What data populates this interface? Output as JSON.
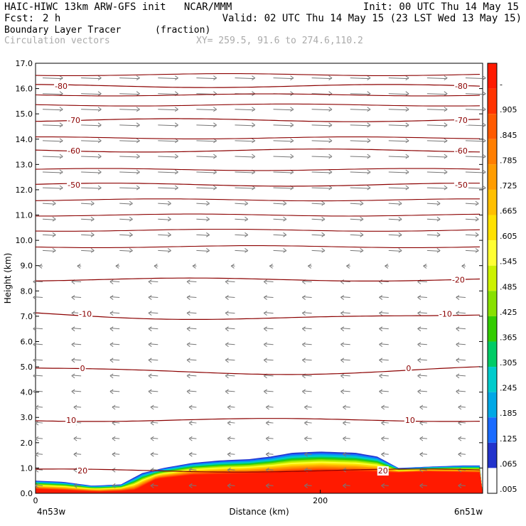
{
  "header": {
    "line1_left": "HAIC-HIWC 13km ARW-GFS init   NCAR/MMM",
    "line1_right": "Init: 00 UTC Thu 14 May 15",
    "line2_left_label": "Fcst:",
    "line2_left_value": "2 h",
    "line2_right": "Valid: 02 UTC Thu 14 May 15 (23 LST Wed 13 May 15)",
    "field_name": "Boundary Layer Tracer",
    "field_units": "(fraction)",
    "vector_label": "Circulation vectors",
    "xy_label": "XY= 259.5, 91.6 to 274.6,110.2"
  },
  "colorbar": {
    "labels": [
      "-",
      ".905",
      ".845",
      ".785",
      ".725",
      ".665",
      ".605",
      ".545",
      ".485",
      ".425",
      ".365",
      ".305",
      ".245",
      ".185",
      ".125",
      ".065",
      ".005"
    ],
    "colors": [
      "#ff1a00",
      "#ff3300",
      "#ff5a00",
      "#ff7e00",
      "#ff9c00",
      "#ffbf00",
      "#ffe100",
      "#ffff33",
      "#ccf200",
      "#88e000",
      "#33cc00",
      "#00cc66",
      "#00cccc",
      "#00a8e6",
      "#1a6bff",
      "#2233cc",
      "#ffffff"
    ]
  },
  "chart_data": {
    "type": "heatmap",
    "title": "Boundary Layer Tracer",
    "xlabel": "Distance (km)",
    "ylabel": "Height (km)",
    "xlim": [
      0,
      314
    ],
    "ylim": [
      0,
      17
    ],
    "x_ticks": [
      0,
      200
    ],
    "x_tick_labels": [
      "0",
      "200"
    ],
    "x_end_labels": [
      "4n53w",
      "6n51w"
    ],
    "y_ticks": [
      0.0,
      1.0,
      2.0,
      3.0,
      4.0,
      5.0,
      6.0,
      7.0,
      8.0,
      9.0,
      10.0,
      11.0,
      12.0,
      13.0,
      14.0,
      15.0,
      16.0,
      17.0
    ],
    "y_tick_labels": [
      "0.0",
      "1.0",
      "2.0",
      "3.0",
      "4.0",
      "5.0",
      "6.0",
      "7.0",
      "8.0",
      "9.0",
      "10.0",
      "11.0",
      "12.0",
      "13.0",
      "14.0",
      "15.0",
      "16.0",
      "17.0"
    ],
    "colorbar_range": [
      0.005,
      0.905
    ],
    "tracer_top_km": [
      {
        "x": 0,
        "top": 0.5
      },
      {
        "x": 20,
        "top": 0.45
      },
      {
        "x": 40,
        "top": 0.3
      },
      {
        "x": 60,
        "top": 0.35
      },
      {
        "x": 75,
        "top": 0.8
      },
      {
        "x": 90,
        "top": 1.0
      },
      {
        "x": 110,
        "top": 1.2
      },
      {
        "x": 130,
        "top": 1.3
      },
      {
        "x": 150,
        "top": 1.35
      },
      {
        "x": 165,
        "top": 1.45
      },
      {
        "x": 180,
        "top": 1.6
      },
      {
        "x": 200,
        "top": 1.65
      },
      {
        "x": 225,
        "top": 1.6
      },
      {
        "x": 240,
        "top": 1.45
      },
      {
        "x": 255,
        "top": 1.0
      },
      {
        "x": 275,
        "top": 1.05
      },
      {
        "x": 300,
        "top": 1.1
      },
      {
        "x": 314,
        "top": 1.1
      }
    ],
    "red_core_top_km": [
      {
        "x": 0,
        "top": 0.15
      },
      {
        "x": 45,
        "top": 0.05
      },
      {
        "x": 70,
        "top": 0.1
      },
      {
        "x": 85,
        "top": 0.55
      },
      {
        "x": 110,
        "top": 0.7
      },
      {
        "x": 150,
        "top": 0.75
      },
      {
        "x": 200,
        "top": 0.85
      },
      {
        "x": 250,
        "top": 0.8
      },
      {
        "x": 275,
        "top": 0.85
      },
      {
        "x": 314,
        "top": 0.8
      }
    ],
    "temperature_contours": [
      {
        "value": 20,
        "label": "20",
        "height_km": 0.9,
        "label_positions": [
          {
            "x": 33,
            "y": 0.9
          },
          {
            "x": 244,
            "y": 0.9
          }
        ]
      },
      {
        "value": 10,
        "label": "10",
        "height_km": 2.9,
        "label_positions": [
          {
            "x": 25,
            "y": 2.9
          },
          {
            "x": 263,
            "y": 2.9
          }
        ]
      },
      {
        "value": 0,
        "label": "0",
        "height_km": 4.95,
        "label_positions": [
          {
            "x": 33,
            "y": 4.95
          },
          {
            "x": 262,
            "y": 4.95
          }
        ]
      },
      {
        "value": -10,
        "label": "-10",
        "height_km": 7.1,
        "label_positions": [
          {
            "x": 35,
            "y": 7.1
          },
          {
            "x": 288,
            "y": 7.1
          }
        ]
      },
      {
        "value": -20,
        "label": "-20",
        "height_km": 8.45,
        "label_positions": [
          {
            "x": 297,
            "y": 8.45
          }
        ]
      },
      {
        "value": -50,
        "label": "-50",
        "height_km": 12.2,
        "label_positions": [
          {
            "x": 27,
            "y": 12.2
          },
          {
            "x": 299,
            "y": 12.2
          }
        ]
      },
      {
        "value": -60,
        "label": "-60",
        "height_km": 13.55,
        "label_positions": [
          {
            "x": 27,
            "y": 13.55
          },
          {
            "x": 299,
            "y": 13.55
          }
        ]
      },
      {
        "value": -70,
        "label": "-70",
        "height_km": 14.75,
        "label_positions": [
          {
            "x": 27,
            "y": 14.75
          },
          {
            "x": 299,
            "y": 14.75
          }
        ]
      },
      {
        "value": -80,
        "label": "-80",
        "height_km": 16.1,
        "label_positions": [
          {
            "x": 18,
            "y": 16.1
          },
          {
            "x": 299,
            "y": 16.1
          }
        ]
      }
    ],
    "vectors": {
      "upper_direction": "eastward",
      "upper_layer_km": [
        9.5,
        17.0
      ],
      "lower_direction": "westward",
      "lower_layer_km": [
        0.0,
        9.3
      ]
    }
  }
}
